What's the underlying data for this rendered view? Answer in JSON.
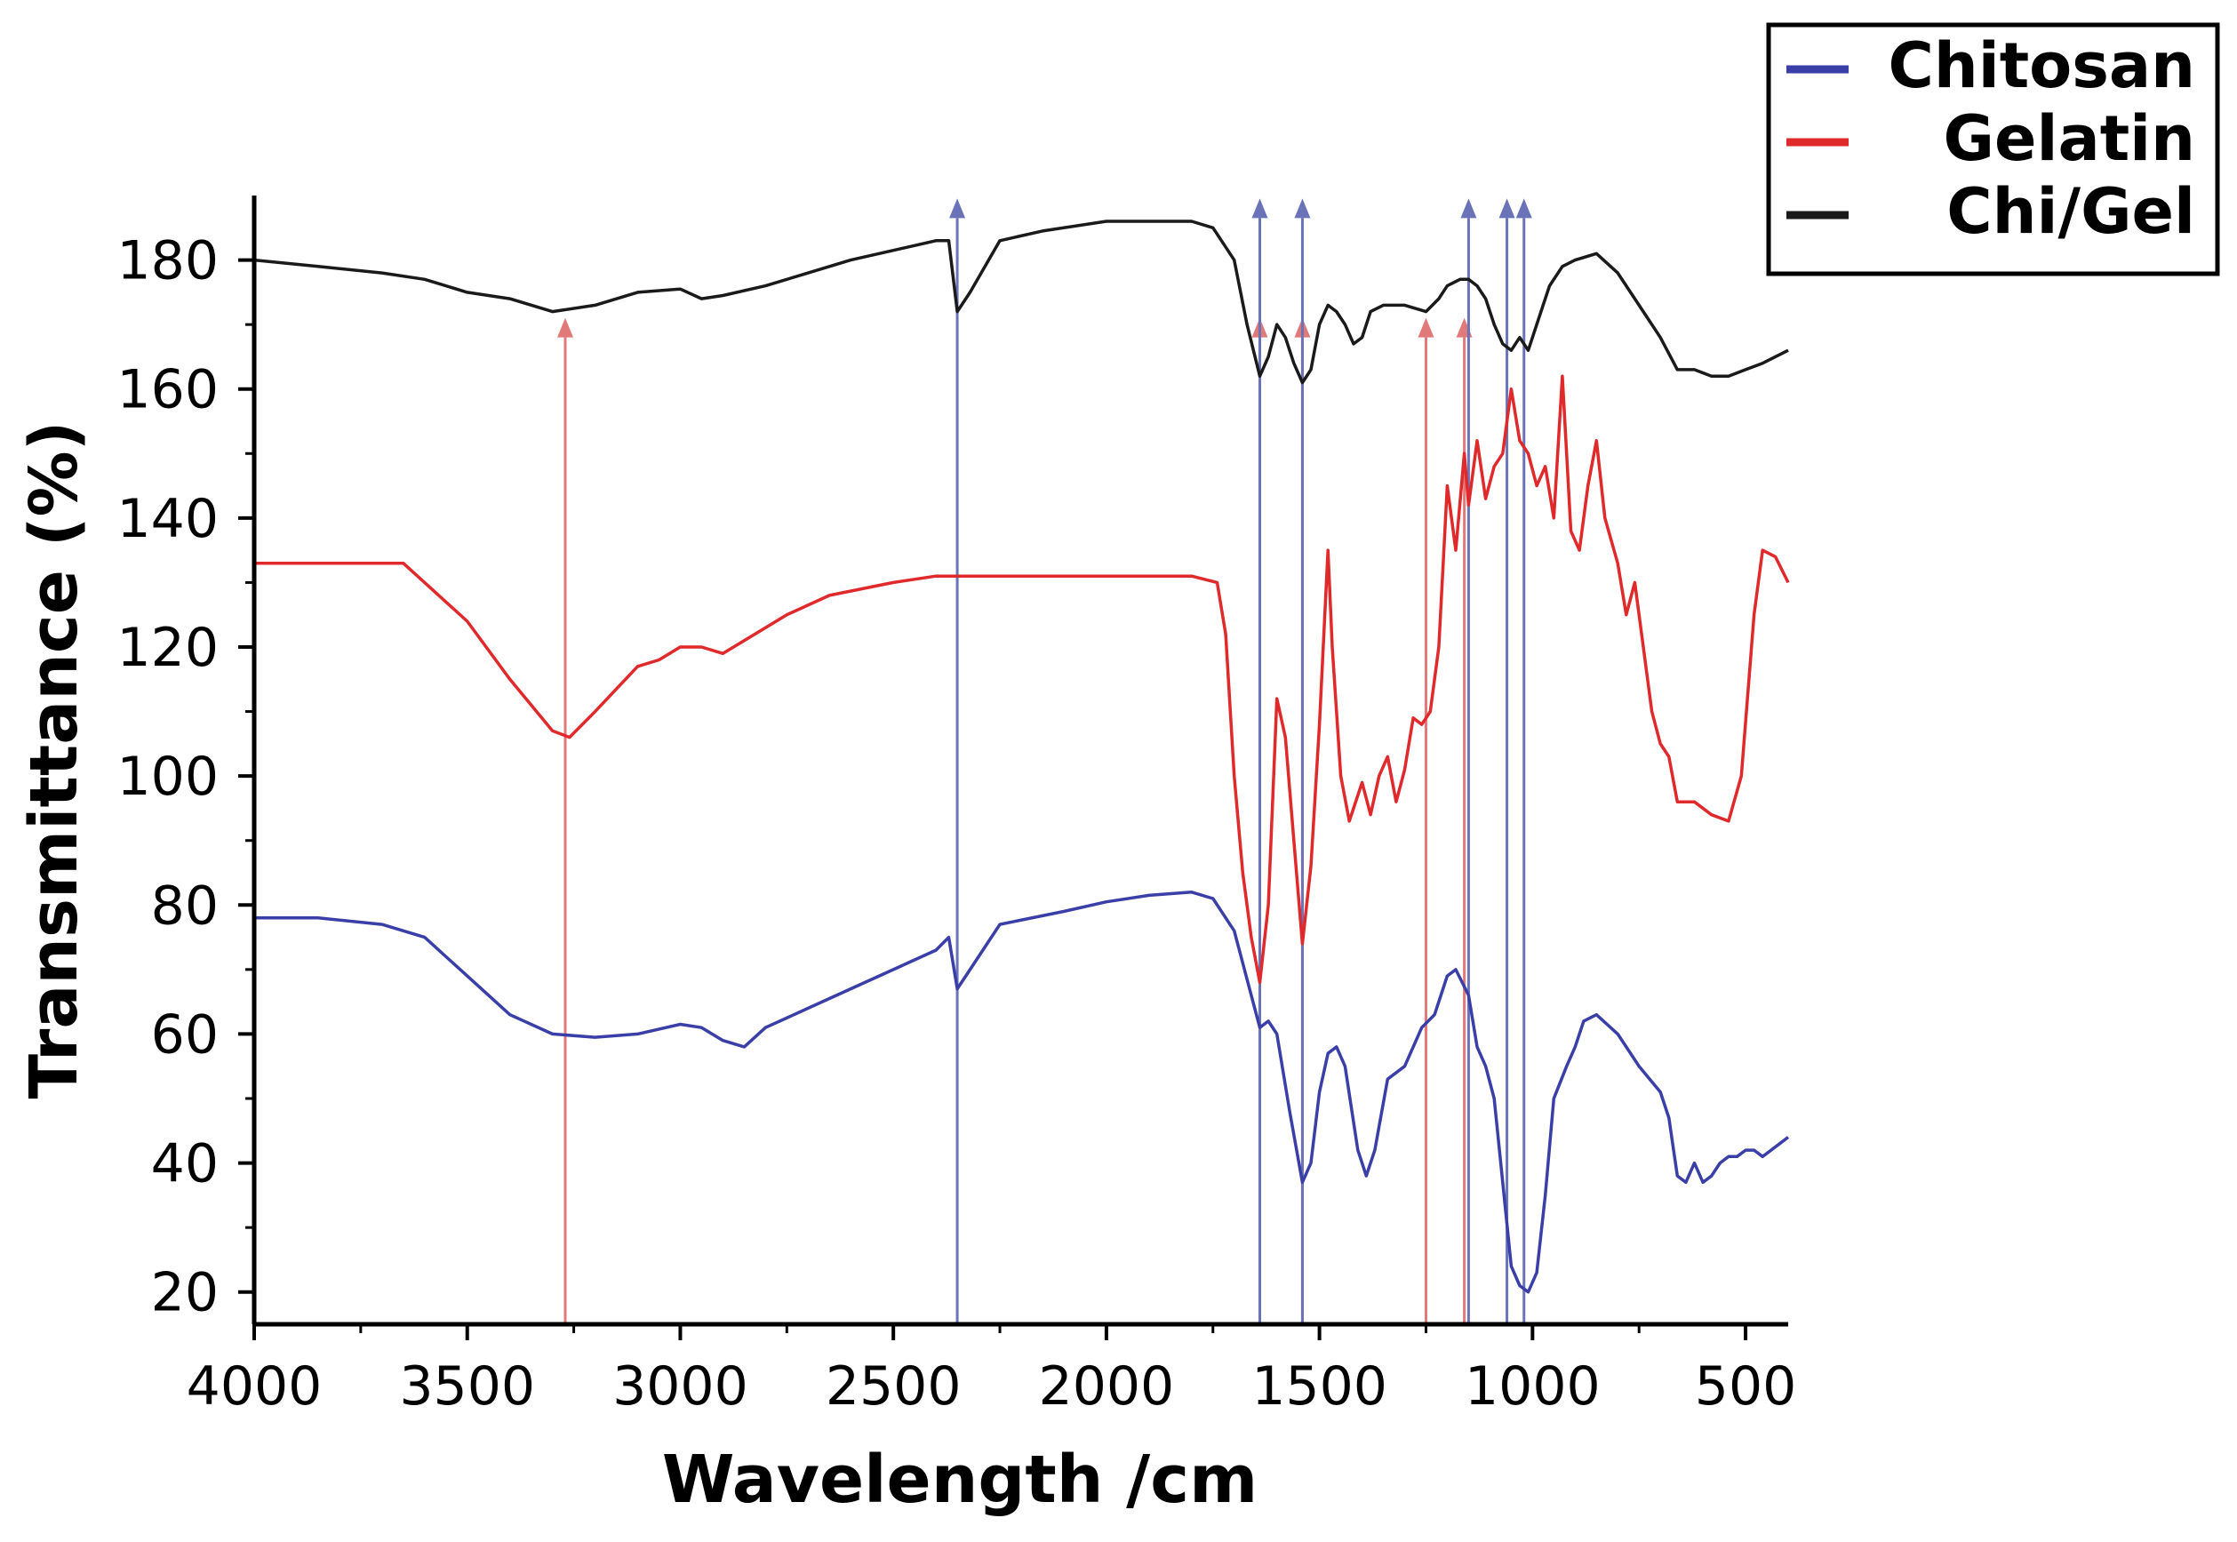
{
  "chart_data": {
    "type": "line",
    "title": "",
    "xlabel": "Wavelength /cm",
    "ylabel": "Transmittance (%)",
    "xlim": [
      4000,
      400
    ],
    "ylim": [
      15,
      190
    ],
    "xticks": [
      4000,
      3500,
      3000,
      2500,
      2000,
      1500,
      1000,
      500
    ],
    "xtick_labels": [
      "4000",
      "3500",
      "3000",
      "2500",
      "2000",
      "1500",
      "1000",
      "500"
    ],
    "yticks": [
      20,
      40,
      60,
      80,
      100,
      120,
      140,
      160,
      180
    ],
    "ytick_labels": [
      "20",
      "40",
      "60",
      "80",
      "100",
      "120",
      "140",
      "160",
      "180"
    ],
    "grid": false,
    "legend_position": "top-right",
    "series": [
      {
        "name": "Chitosan",
        "color": "#3a3fa8",
        "points": [
          [
            4000,
            78
          ],
          [
            3850,
            78
          ],
          [
            3700,
            77
          ],
          [
            3600,
            75
          ],
          [
            3500,
            69
          ],
          [
            3400,
            63
          ],
          [
            3300,
            60
          ],
          [
            3200,
            59.5
          ],
          [
            3100,
            60
          ],
          [
            3000,
            61.5
          ],
          [
            2950,
            61
          ],
          [
            2900,
            59
          ],
          [
            2850,
            58
          ],
          [
            2800,
            61
          ],
          [
            2700,
            64
          ],
          [
            2600,
            67
          ],
          [
            2500,
            70
          ],
          [
            2400,
            73
          ],
          [
            2370,
            75
          ],
          [
            2350,
            67
          ],
          [
            2320,
            70
          ],
          [
            2250,
            77
          ],
          [
            2100,
            79
          ],
          [
            2000,
            80.5
          ],
          [
            1900,
            81.5
          ],
          [
            1800,
            82
          ],
          [
            1750,
            81
          ],
          [
            1700,
            76
          ],
          [
            1660,
            66
          ],
          [
            1640,
            61
          ],
          [
            1620,
            62
          ],
          [
            1600,
            60
          ],
          [
            1570,
            48
          ],
          [
            1540,
            37
          ],
          [
            1520,
            40
          ],
          [
            1500,
            51
          ],
          [
            1480,
            57
          ],
          [
            1460,
            58
          ],
          [
            1440,
            55
          ],
          [
            1410,
            42
          ],
          [
            1390,
            38
          ],
          [
            1370,
            42
          ],
          [
            1340,
            53
          ],
          [
            1300,
            55
          ],
          [
            1260,
            61
          ],
          [
            1230,
            63
          ],
          [
            1200,
            69
          ],
          [
            1180,
            70
          ],
          [
            1150,
            66
          ],
          [
            1130,
            58
          ],
          [
            1110,
            55
          ],
          [
            1090,
            50
          ],
          [
            1070,
            37
          ],
          [
            1050,
            24
          ],
          [
            1030,
            21
          ],
          [
            1010,
            20
          ],
          [
            990,
            23
          ],
          [
            970,
            35
          ],
          [
            950,
            50
          ],
          [
            920,
            55
          ],
          [
            900,
            58
          ],
          [
            880,
            62
          ],
          [
            850,
            63
          ],
          [
            800,
            60
          ],
          [
            750,
            55
          ],
          [
            700,
            51
          ],
          [
            680,
            47
          ],
          [
            660,
            38
          ],
          [
            640,
            37
          ],
          [
            620,
            40
          ],
          [
            600,
            37
          ],
          [
            580,
            38
          ],
          [
            560,
            40
          ],
          [
            540,
            41
          ],
          [
            520,
            41
          ],
          [
            500,
            42
          ],
          [
            480,
            42
          ],
          [
            460,
            41
          ],
          [
            440,
            42
          ],
          [
            420,
            43
          ],
          [
            400,
            44
          ]
        ]
      },
      {
        "name": "Gelatin",
        "color": "#e0292b",
        "points": [
          [
            4000,
            133
          ],
          [
            3800,
            133
          ],
          [
            3650,
            133
          ],
          [
            3500,
            124
          ],
          [
            3400,
            115
          ],
          [
            3300,
            107
          ],
          [
            3260,
            106
          ],
          [
            3200,
            110
          ],
          [
            3100,
            117
          ],
          [
            3050,
            118
          ],
          [
            3000,
            120
          ],
          [
            2950,
            120
          ],
          [
            2900,
            119
          ],
          [
            2850,
            121
          ],
          [
            2750,
            125
          ],
          [
            2650,
            128
          ],
          [
            2500,
            130
          ],
          [
            2400,
            131
          ],
          [
            2200,
            131
          ],
          [
            2000,
            131
          ],
          [
            1800,
            131
          ],
          [
            1740,
            130
          ],
          [
            1720,
            122
          ],
          [
            1700,
            100
          ],
          [
            1680,
            85
          ],
          [
            1660,
            75
          ],
          [
            1640,
            68
          ],
          [
            1620,
            80
          ],
          [
            1600,
            112
          ],
          [
            1580,
            106
          ],
          [
            1560,
            90
          ],
          [
            1540,
            74
          ],
          [
            1520,
            86
          ],
          [
            1500,
            108
          ],
          [
            1480,
            135
          ],
          [
            1470,
            120
          ],
          [
            1450,
            100
          ],
          [
            1430,
            93
          ],
          [
            1400,
            99
          ],
          [
            1380,
            94
          ],
          [
            1360,
            100
          ],
          [
            1340,
            103
          ],
          [
            1320,
            96
          ],
          [
            1300,
            101
          ],
          [
            1280,
            109
          ],
          [
            1260,
            108
          ],
          [
            1240,
            110
          ],
          [
            1220,
            120
          ],
          [
            1200,
            145
          ],
          [
            1180,
            135
          ],
          [
            1160,
            150
          ],
          [
            1150,
            142
          ],
          [
            1130,
            152
          ],
          [
            1110,
            143
          ],
          [
            1090,
            148
          ],
          [
            1070,
            150
          ],
          [
            1050,
            160
          ],
          [
            1030,
            152
          ],
          [
            1010,
            150
          ],
          [
            990,
            145
          ],
          [
            970,
            148
          ],
          [
            950,
            140
          ],
          [
            930,
            162
          ],
          [
            910,
            138
          ],
          [
            890,
            135
          ],
          [
            870,
            145
          ],
          [
            850,
            152
          ],
          [
            830,
            140
          ],
          [
            800,
            133
          ],
          [
            780,
            125
          ],
          [
            760,
            130
          ],
          [
            740,
            120
          ],
          [
            720,
            110
          ],
          [
            700,
            105
          ],
          [
            680,
            103
          ],
          [
            660,
            96
          ],
          [
            620,
            96
          ],
          [
            580,
            94
          ],
          [
            540,
            93
          ],
          [
            510,
            100
          ],
          [
            480,
            125
          ],
          [
            460,
            135
          ],
          [
            430,
            134
          ],
          [
            400,
            130
          ]
        ]
      },
      {
        "name": "Chi/Gel",
        "color": "#1a1a1a",
        "points": [
          [
            4000,
            180
          ],
          [
            3850,
            179
          ],
          [
            3700,
            178
          ],
          [
            3600,
            177
          ],
          [
            3500,
            175
          ],
          [
            3400,
            174
          ],
          [
            3300,
            172
          ],
          [
            3200,
            173
          ],
          [
            3100,
            175
          ],
          [
            3000,
            175.5
          ],
          [
            2950,
            174
          ],
          [
            2900,
            174.5
          ],
          [
            2800,
            176
          ],
          [
            2700,
            178
          ],
          [
            2600,
            180
          ],
          [
            2500,
            181.5
          ],
          [
            2400,
            183
          ],
          [
            2370,
            183
          ],
          [
            2350,
            172
          ],
          [
            2320,
            175
          ],
          [
            2250,
            183
          ],
          [
            2150,
            184.5
          ],
          [
            2000,
            186
          ],
          [
            1900,
            186
          ],
          [
            1800,
            186
          ],
          [
            1750,
            185
          ],
          [
            1700,
            180
          ],
          [
            1670,
            170
          ],
          [
            1640,
            162
          ],
          [
            1620,
            165
          ],
          [
            1600,
            170
          ],
          [
            1580,
            168
          ],
          [
            1560,
            164
          ],
          [
            1540,
            161
          ],
          [
            1520,
            163
          ],
          [
            1500,
            170
          ],
          [
            1480,
            173
          ],
          [
            1460,
            172
          ],
          [
            1440,
            170
          ],
          [
            1420,
            167
          ],
          [
            1400,
            168
          ],
          [
            1380,
            172
          ],
          [
            1350,
            173
          ],
          [
            1300,
            173
          ],
          [
            1250,
            172
          ],
          [
            1220,
            174
          ],
          [
            1200,
            176
          ],
          [
            1170,
            177
          ],
          [
            1150,
            177
          ],
          [
            1130,
            176
          ],
          [
            1110,
            174
          ],
          [
            1090,
            170
          ],
          [
            1070,
            167
          ],
          [
            1050,
            166
          ],
          [
            1030,
            168
          ],
          [
            1010,
            166
          ],
          [
            990,
            170
          ],
          [
            960,
            176
          ],
          [
            930,
            179
          ],
          [
            900,
            180
          ],
          [
            850,
            181
          ],
          [
            800,
            178
          ],
          [
            750,
            173
          ],
          [
            700,
            168
          ],
          [
            660,
            163
          ],
          [
            620,
            163
          ],
          [
            580,
            162
          ],
          [
            540,
            162
          ],
          [
            500,
            163
          ],
          [
            460,
            164
          ],
          [
            430,
            165
          ],
          [
            400,
            166
          ]
        ]
      }
    ],
    "markers": [
      {
        "x": 3270,
        "color": "#e27979",
        "top": 168
      },
      {
        "x": 2350,
        "color": "#6b73b8",
        "top": 186.5
      },
      {
        "x": 1640,
        "color": "#e27979",
        "top": 168
      },
      {
        "x": 1540,
        "color": "#e27979",
        "top": 168
      },
      {
        "x": 1250,
        "color": "#e27979",
        "top": 168
      },
      {
        "x": 1160,
        "color": "#e27979",
        "top": 168
      },
      {
        "x": 1640,
        "color": "#6b73b8",
        "top": 186.5
      },
      {
        "x": 1540,
        "color": "#6b73b8",
        "top": 186.5
      },
      {
        "x": 1150,
        "color": "#6b73b8",
        "top": 186.5
      },
      {
        "x": 1060,
        "color": "#6b73b8",
        "top": 186.5
      },
      {
        "x": 1020,
        "color": "#6b73b8",
        "top": 186.5
      }
    ]
  }
}
